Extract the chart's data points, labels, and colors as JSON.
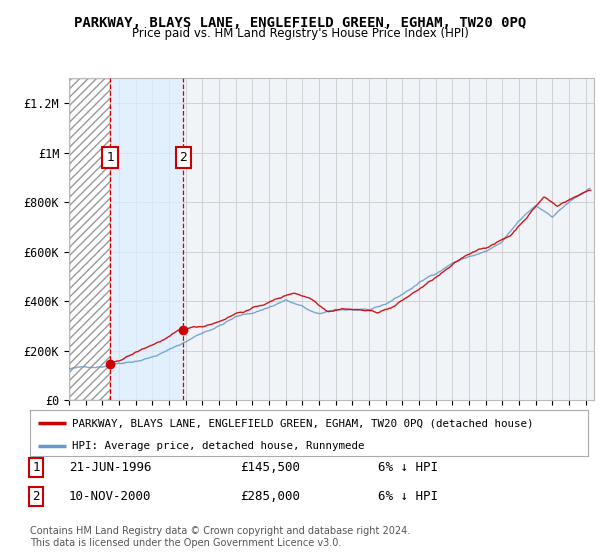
{
  "title": "PARKWAY, BLAYS LANE, ENGLEFIELD GREEN, EGHAM, TW20 0PQ",
  "subtitle": "Price paid vs. HM Land Registry's House Price Index (HPI)",
  "ylabel_ticks": [
    "£0",
    "£200K",
    "£400K",
    "£600K",
    "£800K",
    "£1M",
    "£1.2M"
  ],
  "ytick_values": [
    0,
    200000,
    400000,
    600000,
    800000,
    1000000,
    1200000
  ],
  "ylim": [
    0,
    1300000
  ],
  "xlim_start": 1994.0,
  "xlim_end": 2025.5,
  "sale1_year": 1996.47,
  "sale1_price": 145500,
  "sale1_label": "1",
  "sale1_date": "21-JUN-1996",
  "sale1_amount": "£145,500",
  "sale1_hpi": "6% ↓ HPI",
  "sale2_year": 2000.86,
  "sale2_price": 285000,
  "sale2_label": "2",
  "sale2_date": "10-NOV-2000",
  "sale2_amount": "£285,000",
  "sale2_hpi": "6% ↓ HPI",
  "legend_line1": "PARKWAY, BLAYS LANE, ENGLEFIELD GREEN, EGHAM, TW20 0PQ (detached house)",
  "legend_line2": "HPI: Average price, detached house, Runnymede",
  "footnote": "Contains HM Land Registry data © Crown copyright and database right 2024.\nThis data is licensed under the Open Government Licence v3.0.",
  "red_color": "#cc0000",
  "blue_color": "#6699cc",
  "blue_shade_color": "#ddeeff",
  "background_color": "#ffffff",
  "plot_bg_color": "#f0f4f8"
}
